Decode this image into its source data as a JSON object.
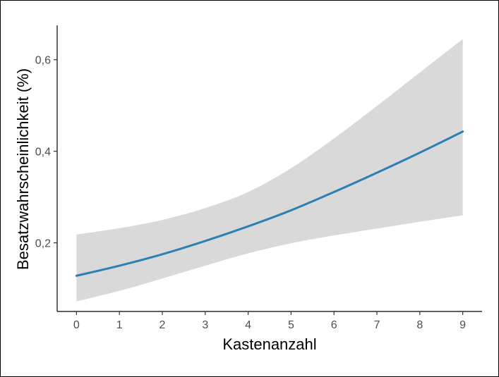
{
  "chart_data": {
    "type": "line",
    "title": "",
    "xlabel": "Kastenanzahl",
    "ylabel": "Besatzwahrscheinlichkeit (%)",
    "xlim": [
      -0.45,
      9.45
    ],
    "ylim": [
      0.05,
      0.675
    ],
    "x_ticks": [
      0,
      1,
      2,
      3,
      4,
      5,
      6,
      7,
      8,
      9
    ],
    "x_tick_labels": [
      "0",
      "1",
      "2",
      "3",
      "4",
      "5",
      "6",
      "7",
      "8",
      "9"
    ],
    "y_ticks": [
      0.2,
      0.4,
      0.6
    ],
    "y_tick_labels": [
      "0,2",
      "0,4",
      "0,6"
    ],
    "grid": false,
    "series": [
      {
        "x": [
          0,
          1,
          2,
          3,
          4,
          5,
          6,
          7,
          8,
          9
        ],
        "y": [
          0.128,
          0.15,
          0.175,
          0.204,
          0.236,
          0.271,
          0.311,
          0.353,
          0.397,
          0.443
        ],
        "lower": [
          0.072,
          0.095,
          0.122,
          0.15,
          0.177,
          0.199,
          0.216,
          0.231,
          0.246,
          0.26
        ],
        "upper": [
          0.218,
          0.232,
          0.25,
          0.276,
          0.311,
          0.363,
          0.428,
          0.499,
          0.572,
          0.645
        ],
        "color": "#2b80b5",
        "band_color": "#d9d9d9"
      }
    ]
  }
}
